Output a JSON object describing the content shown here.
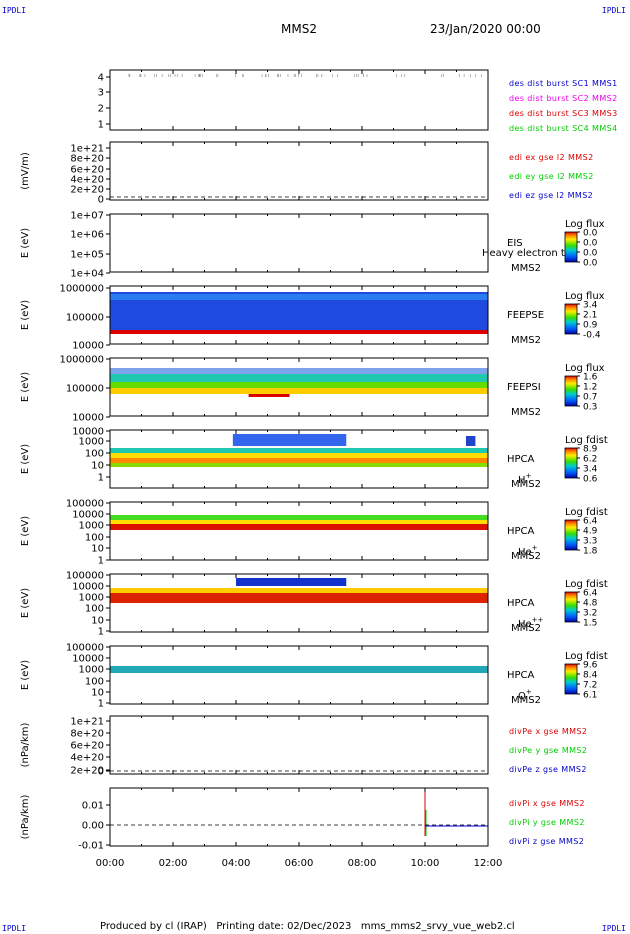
{
  "corner_labels": {
    "top_left": "IPDLI",
    "top_right": "IPDLI",
    "bottom_left": "IPDLI",
    "bottom_right": "IPDLI"
  },
  "header": {
    "spacecraft": "MMS2",
    "datetime": "23/Jan/2020 00:00"
  },
  "footer": {
    "text": "Produced by cl (IRAP)   Printing date: 02/Dec/2023   mms_mms2_srvy_vue_web2.cl"
  },
  "colors": {
    "red": "#dd0000",
    "green": "#00cc00",
    "blue": "#0000cc",
    "magenta": "#ee00ee",
    "darkred": "#cc0000"
  },
  "chart_data": {
    "type": "heatmap",
    "x_ticks": [
      "00:00",
      "02:00",
      "04:00",
      "06:00",
      "08:00",
      "10:00",
      "12:00"
    ],
    "xlim_hours": [
      0,
      12
    ],
    "panels": [
      {
        "id": "p1",
        "ylabel": "",
        "yticks": [
          "4",
          "3",
          "2",
          "1"
        ],
        "legend": [
          {
            "text": "des dist burst SC1 MMS1",
            "color": "#0000cc"
          },
          {
            "text": "des dist burst SC2 MMS2",
            "color": "#ee00ee"
          },
          {
            "text": "des dist burst SC3 MMS3",
            "color": "#dd0000"
          },
          {
            "text": "des dist burst SC4 MMS4",
            "color": "#00cc00"
          }
        ]
      },
      {
        "id": "p2",
        "ylabel": "(mV/m)",
        "yticks": [
          "1e+21",
          "8e+20",
          "6e+20",
          "4e+20",
          "2e+20",
          "0"
        ],
        "legend": [
          {
            "text": "edi ex gse l2 MMS2",
            "color": "#dd0000"
          },
          {
            "text": "edi ey gse l2 MMS2",
            "color": "#00cc00"
          },
          {
            "text": "edi ez gse l2 MMS2",
            "color": "#0000cc"
          }
        ]
      },
      {
        "id": "p3",
        "ylabel": "E (eV)",
        "yticks": [
          "1e+07",
          "1e+06",
          "1e+05",
          "1e+04"
        ],
        "right_labels": [
          "EIS",
          "MMS2"
        ],
        "overflow_label": "Heavy electron to",
        "colorbar": {
          "title": "Log flux",
          "ticks": [
            "0.0",
            "0.0",
            "0.0",
            "0.0"
          ]
        }
      },
      {
        "id": "p4",
        "ylabel": "E (eV)",
        "yticks": [
          "1000000",
          "100000",
          "10000"
        ],
        "right_labels": [
          "FEEPSE",
          "MMS2"
        ],
        "colorbar": {
          "title": "Log flux",
          "ticks": [
            "3.4",
            "2.1",
            "0.9",
            "-0.4"
          ]
        }
      },
      {
        "id": "p5",
        "ylabel": "E (eV)",
        "yticks": [
          "1000000",
          "100000",
          "10000"
        ],
        "right_labels": [
          "FEEPSI",
          "MMS2"
        ],
        "colorbar": {
          "title": "Log flux",
          "ticks": [
            "1.6",
            "1.2",
            "0.7",
            "0.3"
          ]
        }
      },
      {
        "id": "p6",
        "ylabel": "E (eV)",
        "yticks": [
          "10000",
          "1000",
          "100",
          "10",
          "1"
        ],
        "right_labels": [
          "HPCA",
          "MMS2"
        ],
        "species": "H",
        "species_sup": "+",
        "colorbar": {
          "title": "Log fdist",
          "ticks": [
            "8.9",
            "6.2",
            "3.4",
            "0.6"
          ]
        }
      },
      {
        "id": "p7",
        "ylabel": "E (eV)",
        "yticks": [
          "100000",
          "10000",
          "1000",
          "100",
          "10",
          "1"
        ],
        "right_labels": [
          "HPCA",
          "MMS2"
        ],
        "species": "He",
        "species_sup": "+",
        "colorbar": {
          "title": "Log fdist",
          "ticks": [
            "6.4",
            "4.9",
            "3.3",
            "1.8"
          ]
        }
      },
      {
        "id": "p8",
        "ylabel": "E (eV)",
        "yticks": [
          "100000",
          "10000",
          "1000",
          "100",
          "10",
          "1"
        ],
        "right_labels": [
          "HPCA",
          "MMS2"
        ],
        "species": "He",
        "species_sup": "++",
        "colorbar": {
          "title": "Log fdist",
          "ticks": [
            "6.4",
            "4.8",
            "3.2",
            "1.5"
          ]
        }
      },
      {
        "id": "p9",
        "ylabel": "E (eV)",
        "yticks": [
          "100000",
          "10000",
          "1000",
          "100",
          "10",
          "1"
        ],
        "right_labels": [
          "HPCA",
          "MMS2"
        ],
        "species": "O",
        "species_sup": "+",
        "colorbar": {
          "title": "Log fdist",
          "ticks": [
            "9.6",
            "8.4",
            "7.2",
            "6.1"
          ]
        }
      },
      {
        "id": "p10",
        "ylabel": "(nPa/km)",
        "yticks": [
          "1e+21",
          "8e+20",
          "6e+20",
          "4e+20",
          "2e+20",
          "0"
        ],
        "legend": [
          {
            "text": "divPe x gse MMS2",
            "color": "#dd0000"
          },
          {
            "text": "divPe y gse MMS2",
            "color": "#00cc00"
          },
          {
            "text": "divPe z gse MMS2",
            "color": "#0000cc"
          }
        ]
      },
      {
        "id": "p11",
        "ylabel": "(nPa/km)",
        "yticks": [
          "0.01",
          "0.00",
          "-0.01"
        ],
        "legend": [
          {
            "text": "divPi x gse MMS2",
            "color": "#dd0000"
          },
          {
            "text": "divPi y gse MMS2",
            "color": "#00cc00"
          },
          {
            "text": "divPi z gse MMS2",
            "color": "#0000cc"
          }
        ]
      }
    ]
  }
}
